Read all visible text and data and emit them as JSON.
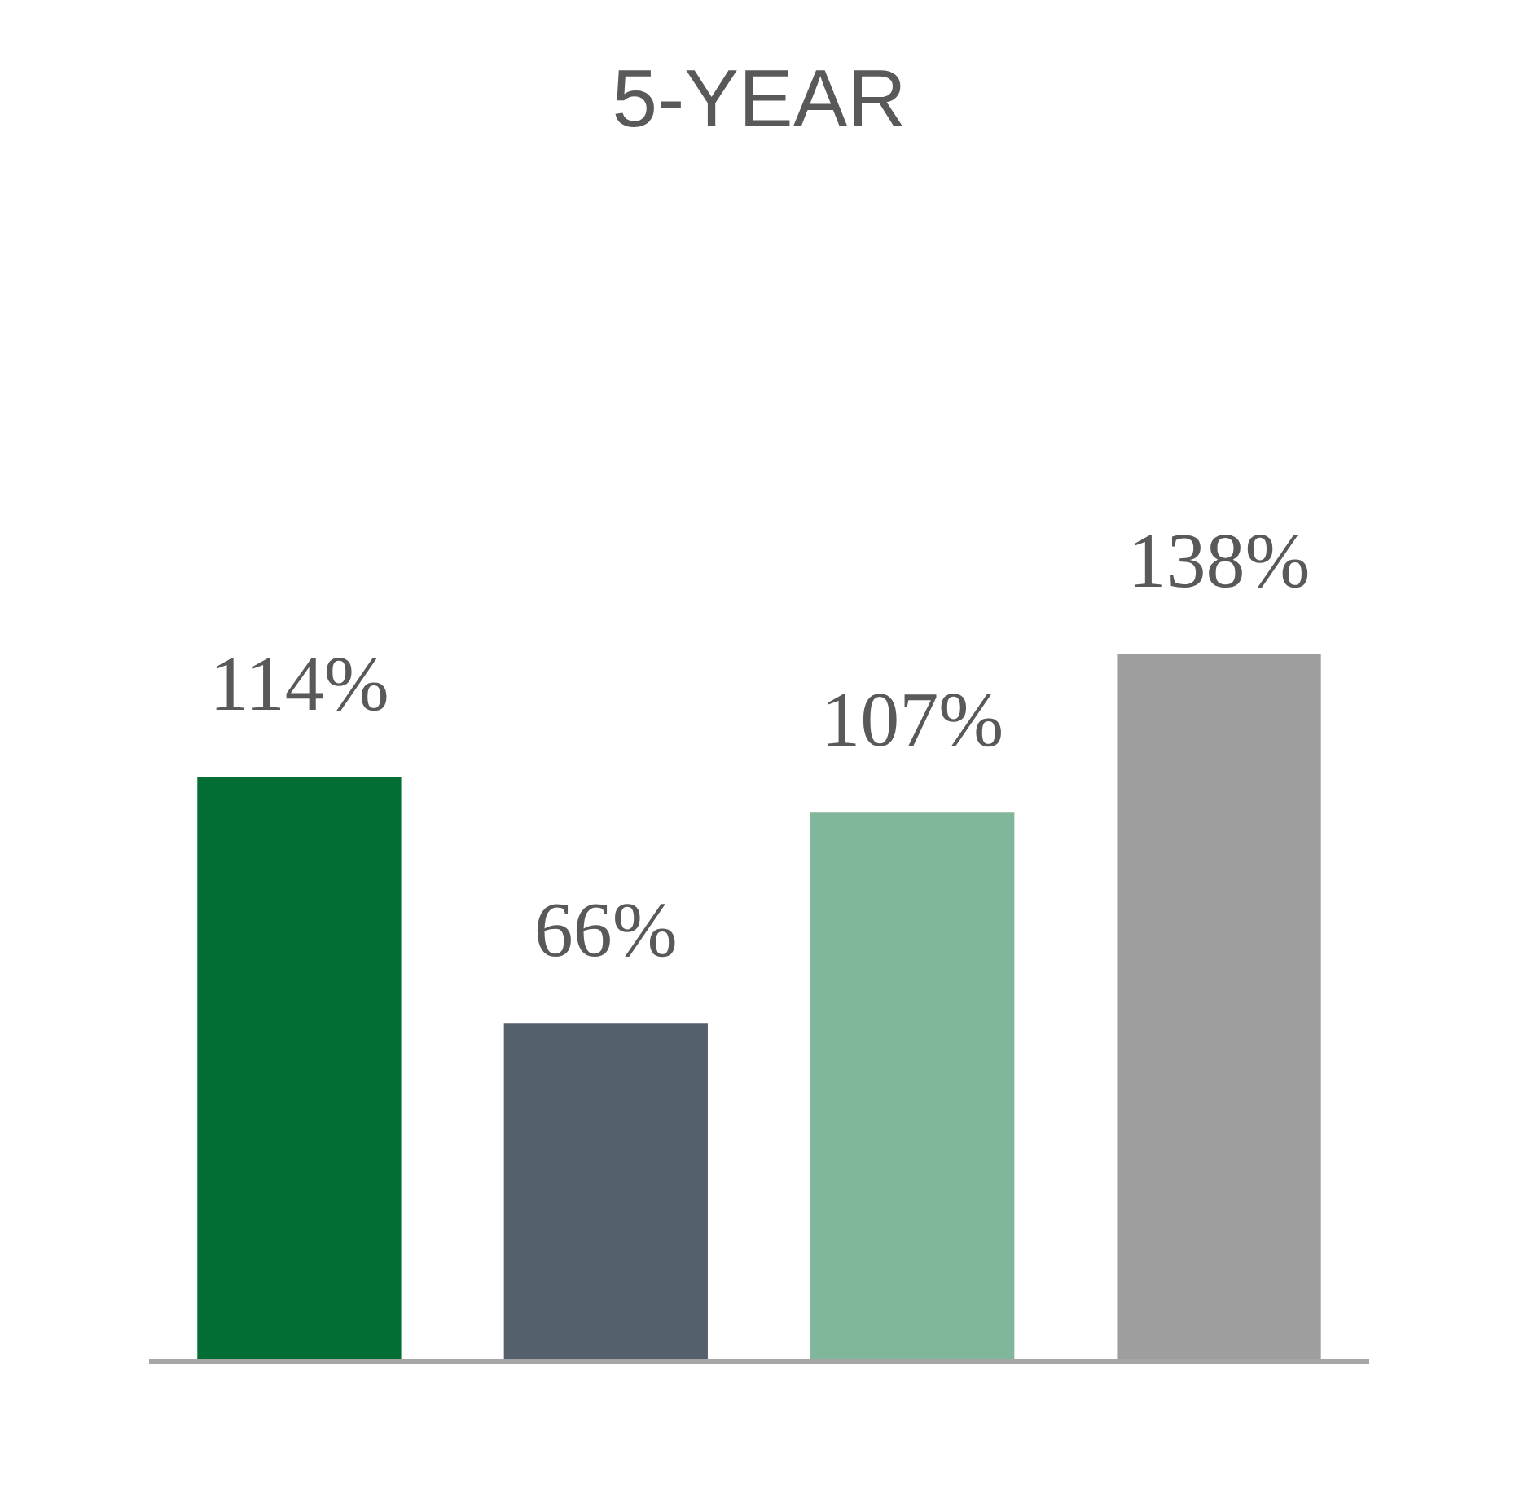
{
  "chart_data": {
    "type": "bar",
    "title": "5-YEAR",
    "categories": [
      null,
      null,
      null,
      null
    ],
    "values": [
      114,
      66,
      107,
      138
    ],
    "colors": [
      "#026e34",
      "#54606c",
      "#80b69a",
      "#9e9e9e"
    ],
    "value_labels": [
      "114%",
      "66%",
      "107%",
      "138%"
    ]
  }
}
